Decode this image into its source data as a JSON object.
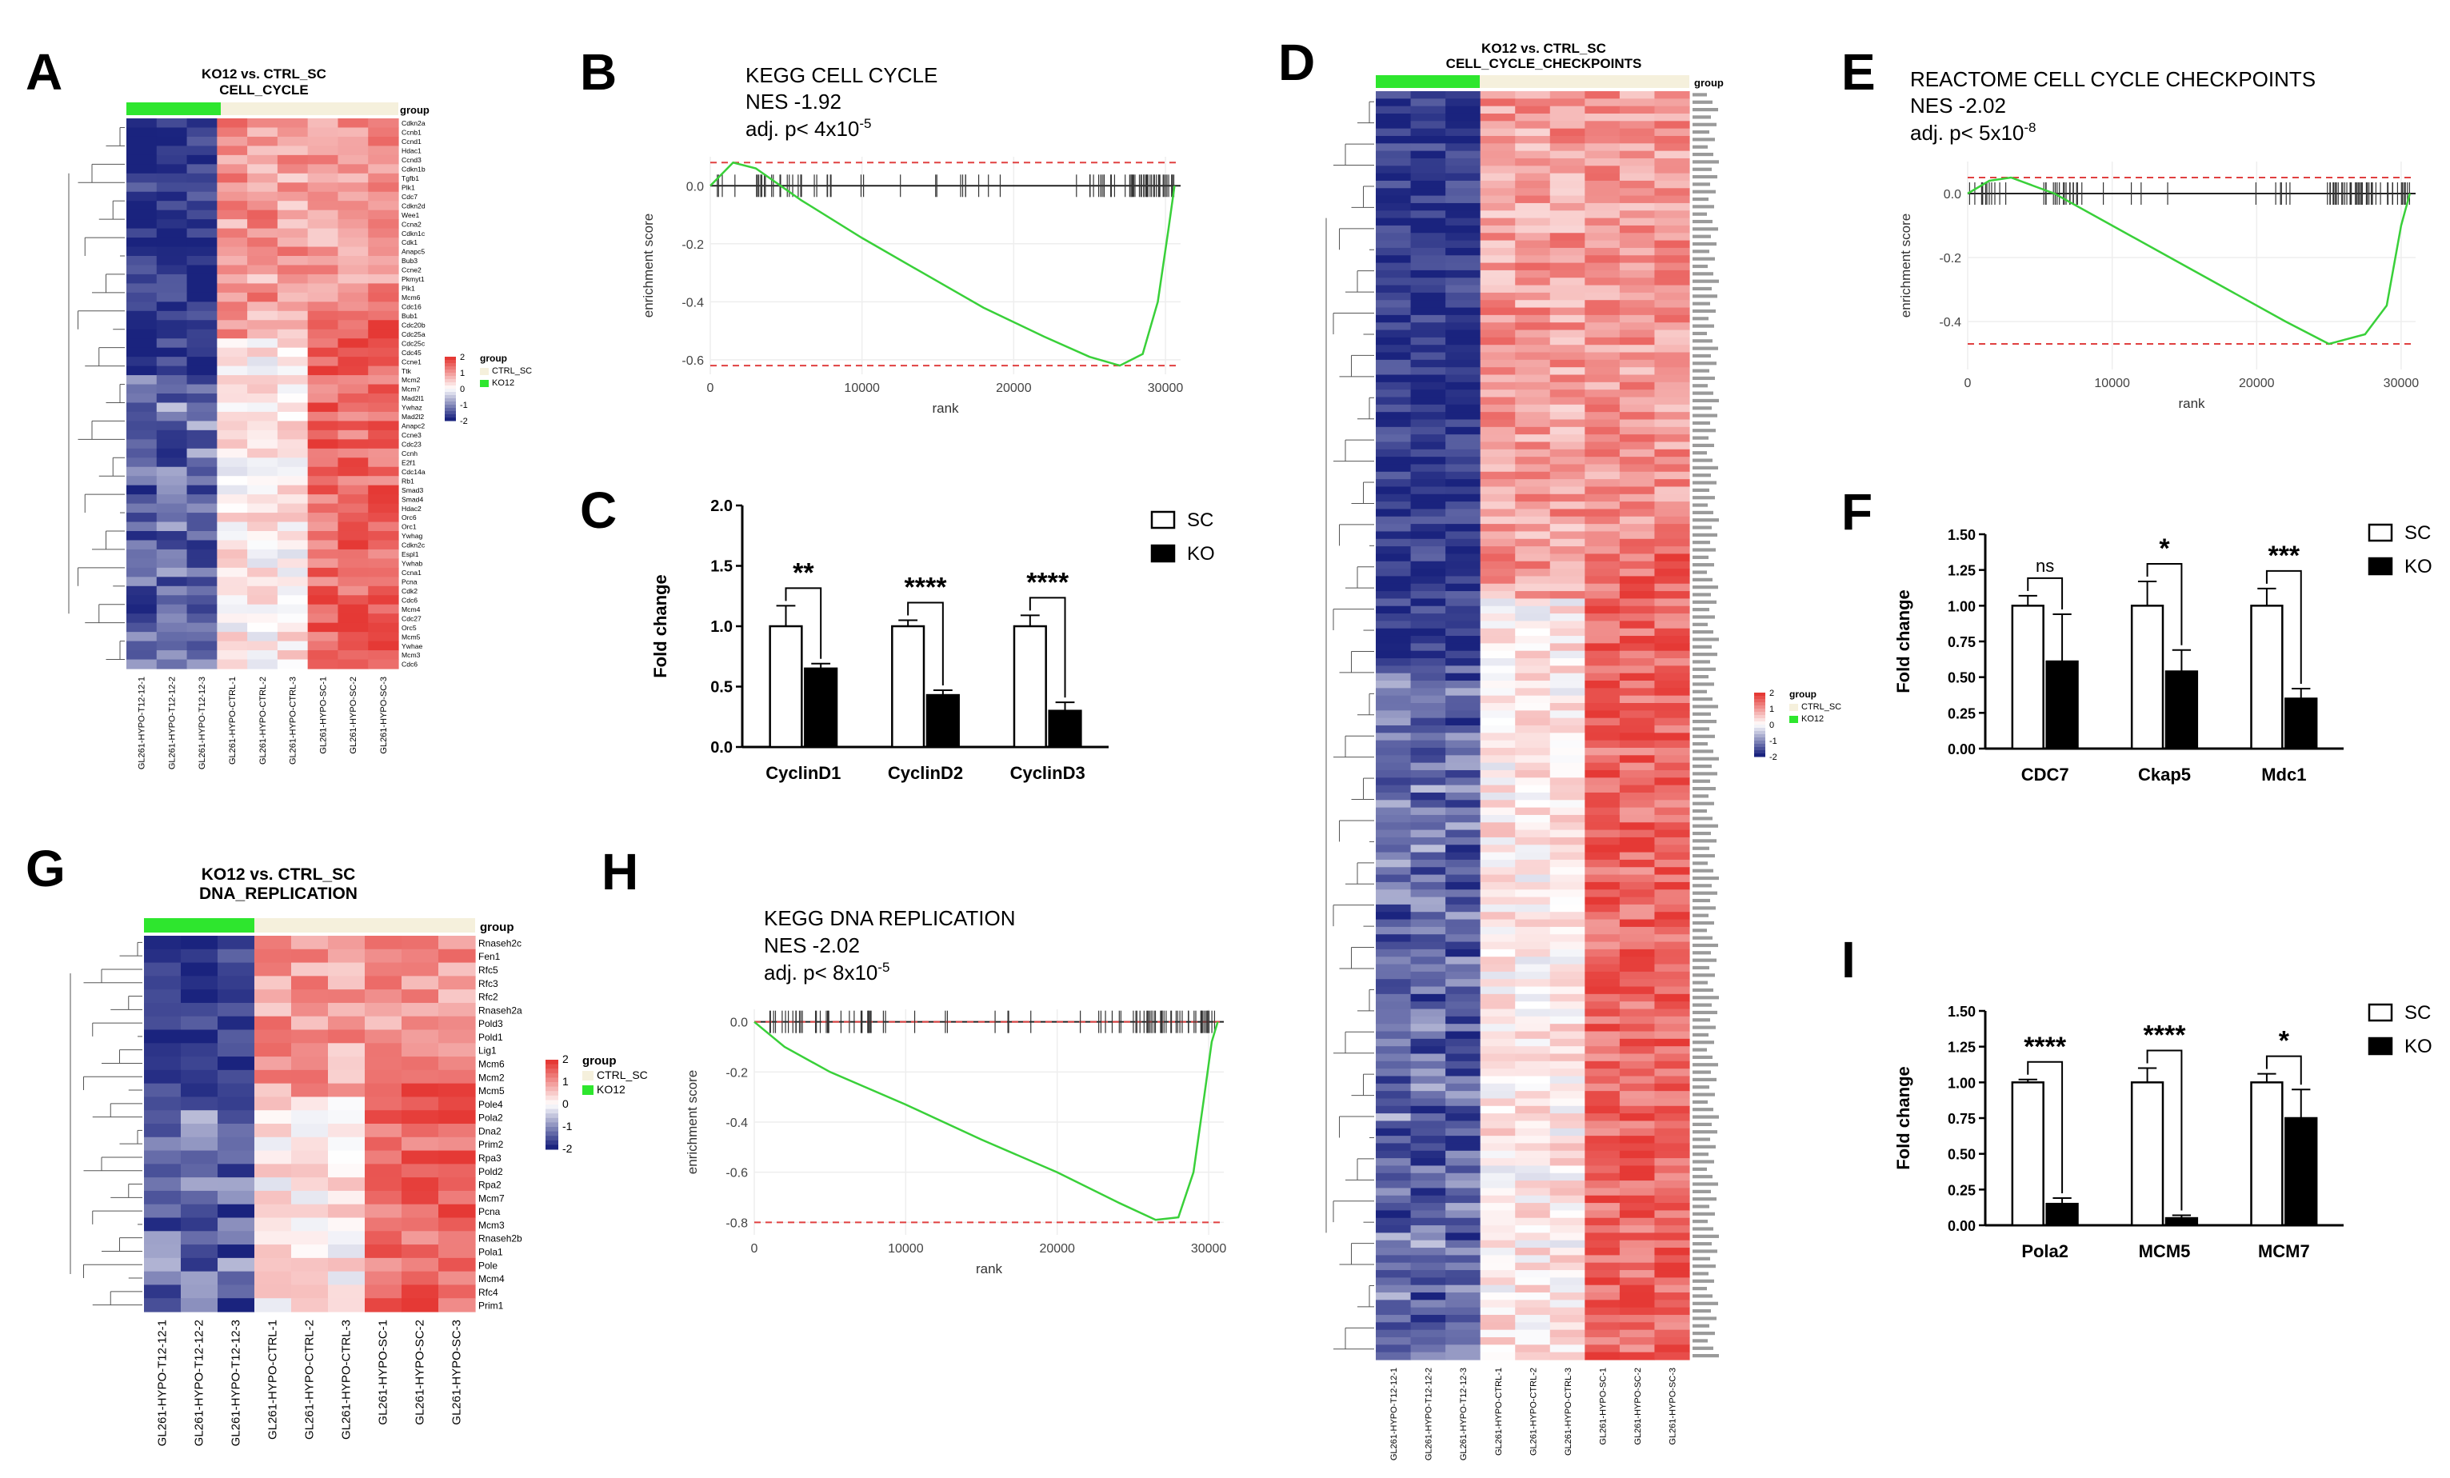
{
  "colors": {
    "blue": "#1a237e",
    "white": "#ffffff",
    "red": "#e53935",
    "green": "#2ee62e",
    "cream": "#f5f0dc",
    "gsea_line": "#39d039",
    "gsea_dash": "#e04040"
  },
  "panels": {
    "A": {
      "letter": "A",
      "title1": "KO12 vs. CTRL_SC",
      "title2": "CELL_CYCLE",
      "group_label": "group",
      "legend_scale": [
        "2",
        "1",
        "0",
        "-1",
        "-2"
      ],
      "legend_title": "group",
      "legend_items": [
        "CTRL_SC",
        "KO12"
      ],
      "samples": [
        "GL261-HYPO-T12-12-1",
        "GL261-HYPO-T12-12-2",
        "GL261-HYPO-T12-12-3",
        "GL261-HYPO-CTRL-1",
        "GL261-HYPO-CTRL-2",
        "GL261-HYPO-CTRL-3",
        "GL261-HYPO-SC-1",
        "GL261-HYPO-SC-2",
        "GL261-HYPO-SC-3"
      ],
      "genes": [
        "Cdkn2a",
        "Ccnb1",
        "Ccnd1",
        "Hdac1",
        "Ccnd3",
        "Cdkn1b",
        "Tgfb1",
        "Plk1",
        "Cdc7",
        "Cdkn2d",
        "Wee1",
        "Ccna2",
        "Cdkn1c",
        "Cdk1",
        "Anapc5",
        "Bub3",
        "Ccne2",
        "Pkmyt1",
        "Plk1",
        "Mcm6",
        "Cdc16",
        "Bub1",
        "Cdc20b",
        "Cdc25a",
        "Cdc25c",
        "Cdc45",
        "Ccne1",
        "Ttk",
        "Mcm2",
        "Mcm7",
        "Mad2l1",
        "Ywhaz",
        "Mad2l2",
        "Anapc2",
        "Ccne3",
        "Cdc23",
        "Ccnh",
        "E2f1",
        "Cdc14a",
        "Rb1",
        "Smad3",
        "Smad4",
        "Hdac2",
        "Orc6",
        "Orc1",
        "Ywhag",
        "Cdkn2c",
        "Espl1",
        "Ywhab",
        "Ccna1",
        "Pcna",
        "Cdk2",
        "Cdc6",
        "Mcm4",
        "Cdc27",
        "Orc5",
        "Mcm5",
        "Ywhae",
        "Mcm3",
        "Cdc6"
      ]
    },
    "B": {
      "letter": "B",
      "title": "KEGG CELL CYCLE",
      "nes": "NES -1.92",
      "padj": "adj. p< 4x10",
      "padj_exp": "-5",
      "ylabel": "enrichment score",
      "xlabel": "rank",
      "yticks": [
        "0.0",
        "-0.2",
        "-0.4",
        "-0.6"
      ],
      "xticks": [
        "0",
        "10000",
        "20000",
        "30000"
      ]
    },
    "C": {
      "letter": "C",
      "ylabel": "Fold change",
      "yticks": [
        "0.0",
        "0.5",
        "1.0",
        "1.5",
        "2.0"
      ],
      "legend": [
        "SC",
        "KO"
      ]
    },
    "D": {
      "letter": "D",
      "title1": "KO12 vs. CTRL_SC",
      "title2": "CELL_CYCLE_CHECKPOINTS",
      "group_label": "group",
      "legend_scale": [
        "2",
        "1",
        "0",
        "-1",
        "-2"
      ],
      "legend_title": "group",
      "legend_items": [
        "CTRL_SC",
        "KO12"
      ],
      "samples": [
        "GL261-HYPO-T12-12-1",
        "GL261-HYPO-T12-12-2",
        "GL261-HYPO-T12-12-3",
        "GL261-HYPO-CTRL-1",
        "GL261-HYPO-CTRL-2",
        "GL261-HYPO-CTRL-3",
        "GL261-HYPO-SC-1",
        "GL261-HYPO-SC-2",
        "GL261-HYPO-SC-3"
      ]
    },
    "E": {
      "letter": "E",
      "title": "REACTOME CELL CYCLE CHECKPOINTS",
      "nes": "NES -2.02",
      "padj": "adj. p< 5x10",
      "padj_exp": "-8",
      "ylabel": "enrichment score",
      "xlabel": "rank",
      "yticks": [
        "0.0",
        "-0.2",
        "-0.4"
      ],
      "xticks": [
        "0",
        "10000",
        "20000",
        "30000"
      ]
    },
    "F": {
      "letter": "F",
      "ylabel": "Fold change",
      "yticks": [
        "0.00",
        "0.25",
        "0.50",
        "0.75",
        "1.00",
        "1.25",
        "1.50"
      ],
      "legend": [
        "SC",
        "KO"
      ]
    },
    "G": {
      "letter": "G",
      "title1": "KO12 vs. CTRL_SC",
      "title2": "DNA_REPLICATION",
      "group_label": "group",
      "legend_scale": [
        "2",
        "1",
        "0",
        "-1",
        "-2"
      ],
      "legend_title": "group",
      "legend_items": [
        "CTRL_SC",
        "KO12"
      ],
      "samples": [
        "GL261-HYPO-T12-12-1",
        "GL261-HYPO-T12-12-2",
        "GL261-HYPO-T12-12-3",
        "GL261-HYPO-CTRL-1",
        "GL261-HYPO-CTRL-2",
        "GL261-HYPO-CTRL-3",
        "GL261-HYPO-SC-1",
        "GL261-HYPO-SC-2",
        "GL261-HYPO-SC-3"
      ],
      "genes": [
        "Rnaseh2c",
        "Fen1",
        "Rfc5",
        "Rfc3",
        "Rfc2",
        "Rnaseh2a",
        "Pold3",
        "Pold1",
        "Lig1",
        "Mcm6",
        "Mcm2",
        "Mcm5",
        "Pole4",
        "Pola2",
        "Dna2",
        "Prim2",
        "Rpa3",
        "Pold2",
        "Rpa2",
        "Mcm7",
        "Pcna",
        "Mcm3",
        "Rnaseh2b",
        "Pola1",
        "Pole",
        "Mcm4",
        "Rfc4",
        "Prim1"
      ]
    },
    "H": {
      "letter": "H",
      "title": "KEGG DNA REPLICATION",
      "nes": "NES -2.02",
      "padj": "adj. p< 8x10",
      "padj_exp": "-5",
      "ylabel": "enrichment score",
      "xlabel": "rank",
      "yticks": [
        "0.0",
        "-0.2",
        "-0.4",
        "-0.6",
        "-0.8"
      ],
      "xticks": [
        "0",
        "10000",
        "20000",
        "30000"
      ]
    },
    "I": {
      "letter": "I",
      "ylabel": "Fold change",
      "yticks": [
        "0.00",
        "0.25",
        "0.50",
        "0.75",
        "1.00",
        "1.25",
        "1.50"
      ],
      "legend": [
        "SC",
        "KO"
      ]
    }
  },
  "chart_data": [
    {
      "id": "B",
      "type": "line",
      "title": "KEGG CELL CYCLE",
      "xlabel": "rank",
      "ylabel": "enrichment score",
      "xlim": [
        0,
        31000
      ],
      "ylim": [
        -0.65,
        0.1
      ],
      "x": [
        0,
        1500,
        3000,
        6000,
        10000,
        14000,
        18000,
        22000,
        25000,
        27000,
        28500,
        29500,
        30200,
        30600
      ],
      "y": [
        0.0,
        0.08,
        0.06,
        -0.05,
        -0.18,
        -0.3,
        -0.42,
        -0.52,
        -0.59,
        -0.62,
        -0.58,
        -0.4,
        -0.15,
        0.0
      ],
      "thresholds": [
        0.08,
        -0.62
      ]
    },
    {
      "id": "C",
      "type": "bar",
      "ylabel": "Fold change",
      "ylim": [
        0,
        2.0
      ],
      "categories": [
        "CyclinD1",
        "CyclinD2",
        "CyclinD3"
      ],
      "series": [
        {
          "name": "SC",
          "values": [
            1.0,
            1.0,
            1.0
          ],
          "errors": [
            0.17,
            0.05,
            0.09
          ]
        },
        {
          "name": "KO",
          "values": [
            0.65,
            0.43,
            0.3
          ],
          "errors": [
            0.04,
            0.04,
            0.07
          ]
        }
      ],
      "significance": [
        "**",
        "****",
        "****"
      ]
    },
    {
      "id": "E",
      "type": "line",
      "title": "REACTOME CELL CYCLE CHECKPOINTS",
      "xlabel": "rank",
      "ylabel": "enrichment score",
      "xlim": [
        0,
        31000
      ],
      "ylim": [
        -0.55,
        0.1
      ],
      "x": [
        0,
        1500,
        3000,
        6000,
        10000,
        14000,
        18000,
        22000,
        25000,
        27500,
        29000,
        30000,
        30600
      ],
      "y": [
        0.0,
        0.04,
        0.05,
        0.0,
        -0.1,
        -0.2,
        -0.3,
        -0.4,
        -0.47,
        -0.44,
        -0.35,
        -0.1,
        0.0
      ],
      "thresholds": [
        0.05,
        -0.47
      ]
    },
    {
      "id": "F",
      "type": "bar",
      "ylabel": "Fold change",
      "ylim": [
        0,
        1.5
      ],
      "categories": [
        "CDC7",
        "Ckap5",
        "Mdc1"
      ],
      "series": [
        {
          "name": "SC",
          "values": [
            1.0,
            1.0,
            1.0
          ],
          "errors": [
            0.07,
            0.17,
            0.12
          ]
        },
        {
          "name": "KO",
          "values": [
            0.61,
            0.54,
            0.35
          ],
          "errors": [
            0.33,
            0.15,
            0.07
          ]
        }
      ],
      "significance": [
        "ns",
        "*",
        "***"
      ]
    },
    {
      "id": "H",
      "type": "line",
      "title": "KEGG DNA REPLICATION",
      "xlabel": "rank",
      "ylabel": "enrichment score",
      "xlim": [
        0,
        31000
      ],
      "ylim": [
        -0.85,
        0.05
      ],
      "x": [
        0,
        2000,
        5000,
        10000,
        15000,
        20000,
        24000,
        26500,
        28000,
        29000,
        29700,
        30200,
        30600
      ],
      "y": [
        0.0,
        -0.1,
        -0.2,
        -0.33,
        -0.47,
        -0.6,
        -0.72,
        -0.79,
        -0.78,
        -0.6,
        -0.3,
        -0.08,
        0.0
      ],
      "thresholds": [
        0.0,
        -0.8
      ]
    },
    {
      "id": "I",
      "type": "bar",
      "ylabel": "Fold change",
      "ylim": [
        0,
        1.5
      ],
      "categories": [
        "Pola2",
        "MCM5",
        "MCM7"
      ],
      "series": [
        {
          "name": "SC",
          "values": [
            1.0,
            1.0,
            1.0
          ],
          "errors": [
            0.02,
            0.1,
            0.06
          ]
        },
        {
          "name": "KO",
          "values": [
            0.15,
            0.05,
            0.75
          ],
          "errors": [
            0.04,
            0.02,
            0.2
          ]
        }
      ],
      "significance": [
        "****",
        "****",
        "*"
      ]
    }
  ]
}
